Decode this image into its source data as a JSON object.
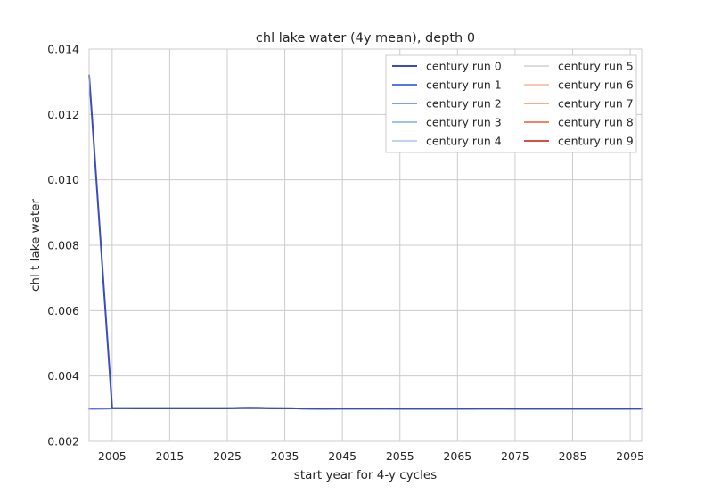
{
  "chart_data": {
    "type": "line",
    "title": "chl lake water (4y mean), depth 0",
    "xlabel": "start year for 4-y cycles",
    "ylabel": "chl t lake water",
    "xlim": [
      2001,
      2097
    ],
    "ylim": [
      0.002,
      0.014
    ],
    "x_ticks": [
      2005,
      2015,
      2025,
      2035,
      2045,
      2055,
      2065,
      2075,
      2085,
      2095
    ],
    "x_tick_labels": [
      "2005",
      "2015",
      "2025",
      "2035",
      "2045",
      "2055",
      "2065",
      "2075",
      "2085",
      "2095"
    ],
    "y_ticks": [
      0.002,
      0.004,
      0.006,
      0.008,
      0.01,
      0.012,
      0.014
    ],
    "y_tick_labels": [
      "0.002",
      "0.004",
      "0.006",
      "0.008",
      "0.010",
      "0.012",
      "0.014"
    ],
    "grid": true,
    "legend_position": "top-right",
    "x": [
      2001,
      2005,
      2009,
      2013,
      2017,
      2021,
      2025,
      2029,
      2033,
      2037,
      2041,
      2045,
      2049,
      2053,
      2057,
      2061,
      2065,
      2069,
      2073,
      2077,
      2081,
      2085,
      2089,
      2093,
      2097
    ],
    "series": [
      {
        "name": "century run 0",
        "color": "#3b4cc0",
        "values": [
          0.0132,
          0.00302,
          0.00301,
          0.00301,
          0.00301,
          0.00301,
          0.00301,
          0.00302,
          0.00301,
          0.00301,
          0.003,
          0.003,
          0.003,
          0.003,
          0.003,
          0.003,
          0.003,
          0.003,
          0.003,
          0.003,
          0.003,
          0.003,
          0.003,
          0.003,
          0.003
        ]
      },
      {
        "name": "century run 1",
        "color": "#5977e3",
        "values": [
          0.003,
          0.00301,
          0.00302,
          0.00302,
          0.00302,
          0.00302,
          0.00302,
          0.00303,
          0.00302,
          0.00301,
          0.003,
          0.00301,
          0.00301,
          0.00301,
          0.003,
          0.003,
          0.003,
          0.00301,
          0.00301,
          0.003,
          0.003,
          0.003,
          0.003,
          0.003,
          0.00301
        ]
      },
      {
        "name": "century run 2",
        "color": "#7b9ff9",
        "values": [
          0.003,
          0.00301,
          0.00302,
          0.00302,
          0.00302,
          0.00302,
          0.00302,
          0.00303,
          0.00302,
          0.00301,
          0.003,
          0.00301,
          0.00301,
          0.00301,
          0.003,
          0.003,
          0.003,
          0.00301,
          0.00301,
          0.003,
          0.003,
          0.003,
          0.003,
          0.003,
          0.00301
        ]
      },
      {
        "name": "century run 3",
        "color": "#9ebeff",
        "values": [
          0.003,
          0.00301,
          0.00302,
          0.00302,
          0.00302,
          0.00302,
          0.00302,
          0.00303,
          0.00302,
          0.00301,
          0.003,
          0.00301,
          0.00301,
          0.00301,
          0.003,
          0.003,
          0.003,
          0.00301,
          0.00301,
          0.003,
          0.003,
          0.003,
          0.003,
          0.003,
          0.00301
        ]
      },
      {
        "name": "century run 4",
        "color": "#c0d4f5",
        "values": [
          0.003,
          0.00301,
          0.00302,
          0.00302,
          0.00302,
          0.00302,
          0.00302,
          0.00303,
          0.00302,
          0.00301,
          0.003,
          0.00301,
          0.00301,
          0.00301,
          0.003,
          0.003,
          0.003,
          0.00301,
          0.00301,
          0.003,
          0.003,
          0.003,
          0.003,
          0.003,
          0.00301
        ]
      },
      {
        "name": "century run 5",
        "color": "#dddcdc",
        "values": [
          0.003,
          0.00301,
          0.00302,
          0.00302,
          0.00302,
          0.00302,
          0.00302,
          0.00303,
          0.00302,
          0.00301,
          0.003,
          0.00301,
          0.00301,
          0.00301,
          0.003,
          0.003,
          0.003,
          0.00301,
          0.00301,
          0.003,
          0.003,
          0.003,
          0.003,
          0.003,
          0.00301
        ]
      },
      {
        "name": "century run 6",
        "color": "#f2cbb7",
        "values": [
          0.003,
          0.00301,
          0.00302,
          0.00302,
          0.00302,
          0.00302,
          0.00302,
          0.00303,
          0.00302,
          0.00301,
          0.003,
          0.00301,
          0.00301,
          0.00301,
          0.003,
          0.003,
          0.003,
          0.00301,
          0.00301,
          0.003,
          0.003,
          0.003,
          0.003,
          0.003,
          0.00301
        ]
      },
      {
        "name": "century run 7",
        "color": "#f7ac8e",
        "values": [
          0.003,
          0.00301,
          0.00302,
          0.00302,
          0.00302,
          0.00302,
          0.00302,
          0.00303,
          0.00302,
          0.00301,
          0.003,
          0.00301,
          0.00301,
          0.00301,
          0.003,
          0.003,
          0.003,
          0.00301,
          0.00301,
          0.003,
          0.003,
          0.003,
          0.003,
          0.003,
          0.00301
        ]
      },
      {
        "name": "century run 8",
        "color": "#ee8468",
        "values": [
          0.003,
          0.00301,
          0.00302,
          0.00302,
          0.00302,
          0.00302,
          0.00302,
          0.00303,
          0.00302,
          0.00301,
          0.003,
          0.00301,
          0.00301,
          0.00301,
          0.003,
          0.003,
          0.003,
          0.00301,
          0.00301,
          0.003,
          0.003,
          0.003,
          0.003,
          0.003,
          0.00301
        ]
      },
      {
        "name": "century run 9",
        "color": "#d65244",
        "values": [
          0.003,
          0.00301,
          0.00302,
          0.00302,
          0.00302,
          0.00302,
          0.00302,
          0.00303,
          0.00302,
          0.00301,
          0.003,
          0.00301,
          0.00301,
          0.00301,
          0.003,
          0.003,
          0.003,
          0.00301,
          0.00301,
          0.003,
          0.003,
          0.003,
          0.003,
          0.003,
          0.00301
        ]
      }
    ]
  }
}
